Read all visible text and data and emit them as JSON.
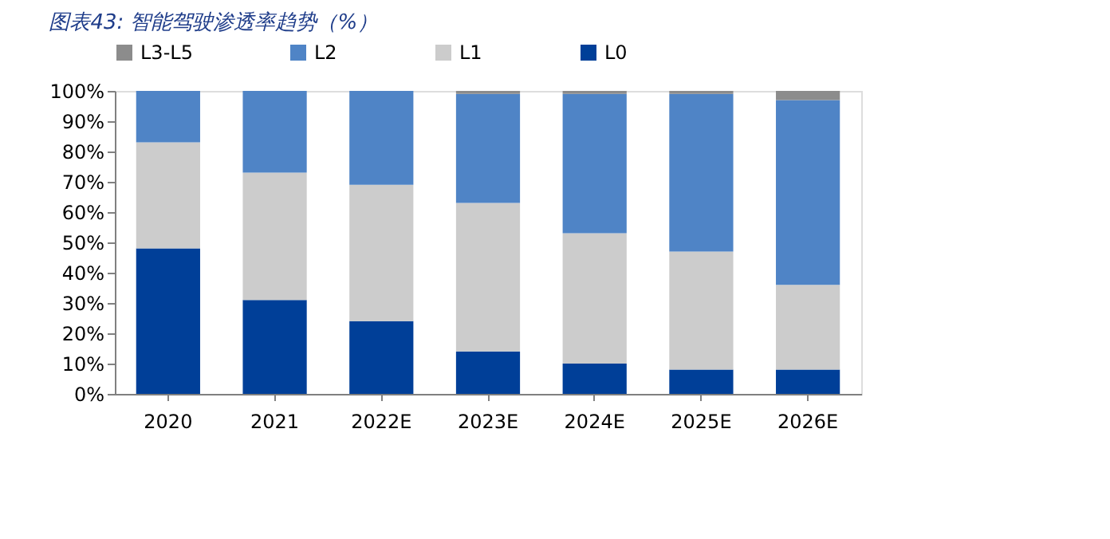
{
  "chart_data": {
    "type": "bar",
    "title": "图表43: 智能驾驶渗透率趋势（%）",
    "categories": [
      "2020",
      "2021",
      "2022E",
      "2023E",
      "2024E",
      "2025E",
      "2026E"
    ],
    "stacked": true,
    "series": [
      {
        "name": "L0",
        "color": "#003f98",
        "values": [
          48,
          31,
          24,
          14,
          10,
          8,
          8
        ]
      },
      {
        "name": "L1",
        "color": "#cccccc",
        "values": [
          35,
          42,
          45,
          49,
          43,
          39,
          28
        ]
      },
      {
        "name": "L2",
        "color": "#4f84c6",
        "values": [
          17,
          27,
          31,
          36,
          46,
          52,
          61
        ]
      },
      {
        "name": "L3-L5",
        "color": "#8c8c8c",
        "values": [
          0,
          0,
          0,
          1,
          1,
          1,
          3
        ]
      }
    ],
    "ylim": [
      0,
      100
    ],
    "yticks": [
      {
        "value": 0,
        "label": "0%"
      },
      {
        "value": 10,
        "label": "10%"
      },
      {
        "value": 20,
        "label": "20%"
      },
      {
        "value": 30,
        "label": "30%"
      },
      {
        "value": 40,
        "label": "40%"
      },
      {
        "value": 50,
        "label": "50%"
      },
      {
        "value": 60,
        "label": "60%"
      },
      {
        "value": 70,
        "label": "70%"
      },
      {
        "value": 80,
        "label": "80%"
      },
      {
        "value": 90,
        "label": "90%"
      },
      {
        "value": 100,
        "label": "100%"
      }
    ],
    "grid": false,
    "legend": "top"
  }
}
